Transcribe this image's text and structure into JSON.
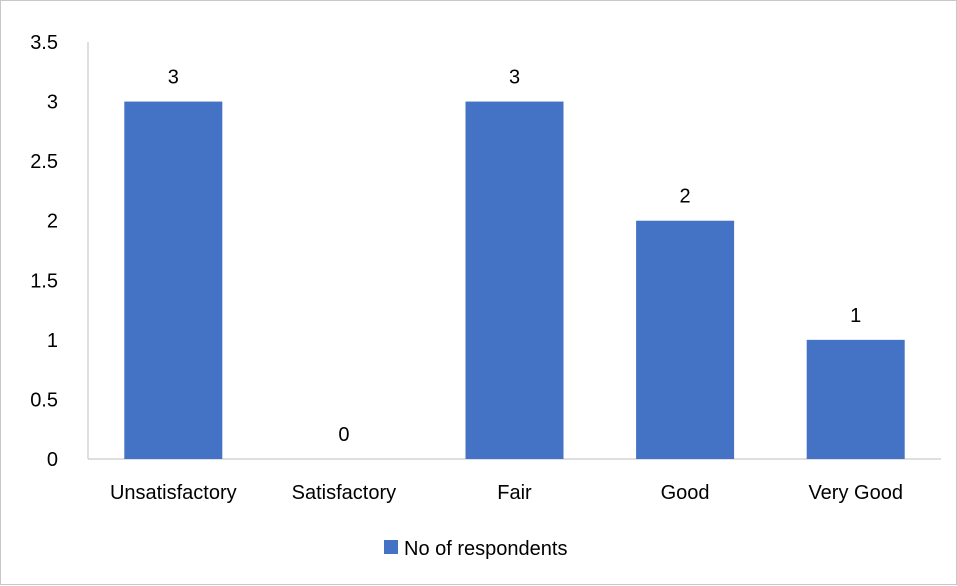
{
  "chart_data": {
    "type": "bar",
    "categories": [
      "Unsatisfactory",
      "Satisfactory",
      "Fair",
      "Good",
      "Very Good"
    ],
    "series": [
      {
        "name": "No of respondents",
        "values": [
          3,
          0,
          3,
          2,
          1
        ],
        "color": "#4472C4"
      }
    ],
    "data_labels": [
      "3",
      "0",
      "3",
      "2",
      "1"
    ],
    "y_ticks": [
      "0",
      "0.5",
      "1",
      "1.5",
      "2",
      "2.5",
      "3",
      "3.5"
    ],
    "ylim": [
      0,
      3.5
    ],
    "title": "",
    "xlabel": "",
    "ylabel": "",
    "grid": false,
    "legend_position": "bottom"
  }
}
